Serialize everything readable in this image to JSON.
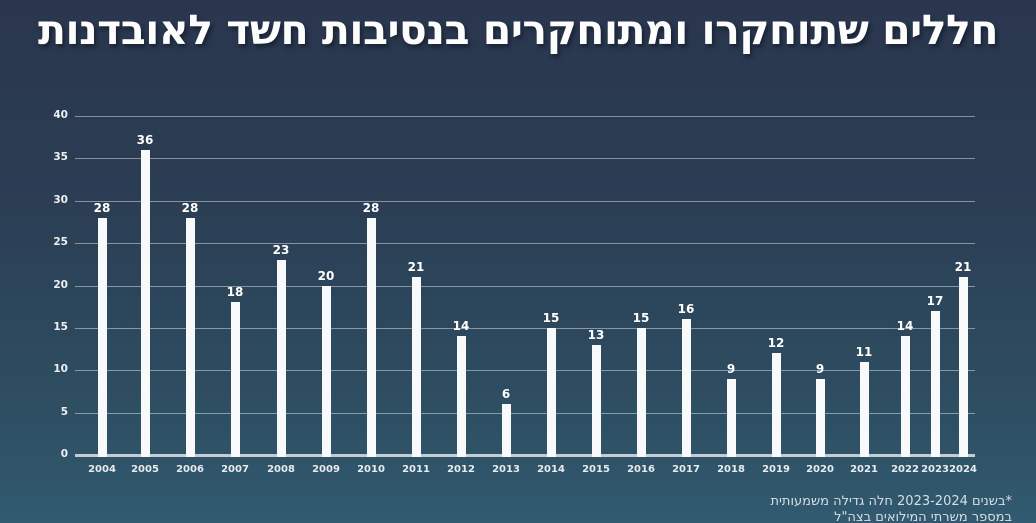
{
  "page": {
    "title": "חללים שתוחקרו ומתוחקרים בנסיבות חשד לאובדנות",
    "footnote_line1": "*בשנים 2023-2024 חלה גדילה משמעותית",
    "footnote_line2": "במספר משרתי המילואים בצה\"ל"
  },
  "colors": {
    "background_top": "#2a364e",
    "background_bottom": "#315a70",
    "bar": "#f8f9fa",
    "gridline": "#d2d9e0",
    "text": "#ffffff"
  },
  "chart_data": {
    "type": "bar",
    "title": "חללים שתוחקרו ומתוחקרים בנסיבות חשד לאובדנות",
    "categories": [
      "2004",
      "2005",
      "2006",
      "2007",
      "2008",
      "2009",
      "2010",
      "2011",
      "2012",
      "2013",
      "2014",
      "2015",
      "2016",
      "2017",
      "2018",
      "2019",
      "2020",
      "2021",
      "2022",
      "2023",
      "2024"
    ],
    "values": [
      28,
      36,
      28,
      18,
      23,
      20,
      28,
      21,
      14,
      6,
      15,
      13,
      15,
      16,
      9,
      12,
      9,
      11,
      14,
      17,
      21
    ],
    "xlabel": "",
    "ylabel": "",
    "ylim": [
      0,
      40
    ],
    "ytick_step": 5,
    "yticks": [
      0,
      5,
      10,
      15,
      20,
      25,
      30,
      35,
      40
    ],
    "grid": true,
    "legend": false,
    "bar_labels": true
  }
}
